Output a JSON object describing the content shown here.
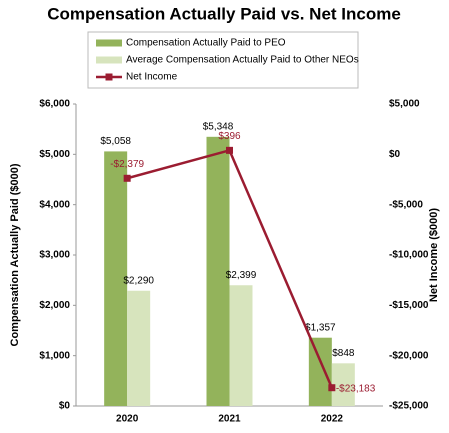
{
  "chart_data": {
    "type": "bar",
    "title": "Compensation Actually Paid vs. Net Income",
    "y_label": "Compensation Actually Paid ($000)",
    "y2_label": "Net Income ($000)",
    "categories": [
      "2020",
      "2021",
      "2022"
    ],
    "series": [
      {
        "name": "Compensation Actually Paid to PEO",
        "type": "bar",
        "color": "#93b35b",
        "values": [
          5058,
          5348,
          1357
        ],
        "value_labels": [
          "$5,058",
          "$5,348",
          "$1,357"
        ]
      },
      {
        "name": "Average Compensation Actually Paid to Other NEOs",
        "type": "bar",
        "color": "#d7e4bd",
        "values": [
          2290,
          2399,
          848
        ],
        "value_labels": [
          "$2,290",
          "$2,399",
          "$848"
        ]
      },
      {
        "name": "Net Income",
        "type": "line",
        "axis": "y2",
        "color": "#9b1c31",
        "values": [
          -2379,
          396,
          -23183
        ],
        "value_labels": [
          "-$2,379",
          "$396",
          "-$23,183"
        ]
      }
    ],
    "ylim": [
      0,
      6000
    ],
    "yticks": [
      {
        "value": 0,
        "label": "$0"
      },
      {
        "value": 1000,
        "label": "$1,000"
      },
      {
        "value": 2000,
        "label": "$2,000"
      },
      {
        "value": 3000,
        "label": "$3,000"
      },
      {
        "value": 4000,
        "label": "$4,000"
      },
      {
        "value": 5000,
        "label": "$5,000"
      },
      {
        "value": 6000,
        "label": "$6,000"
      }
    ],
    "y2lim": [
      -25000,
      5000
    ],
    "y2ticks": [
      {
        "value": -25000,
        "label": "-$25,000"
      },
      {
        "value": -20000,
        "label": "-$20,000"
      },
      {
        "value": -15000,
        "label": "-$15,000"
      },
      {
        "value": -10000,
        "label": "-$10,000"
      },
      {
        "value": -5000,
        "label": "-$5,000"
      },
      {
        "value": 0,
        "label": "$0"
      },
      {
        "value": 5000,
        "label": "$5,000"
      }
    ]
  }
}
